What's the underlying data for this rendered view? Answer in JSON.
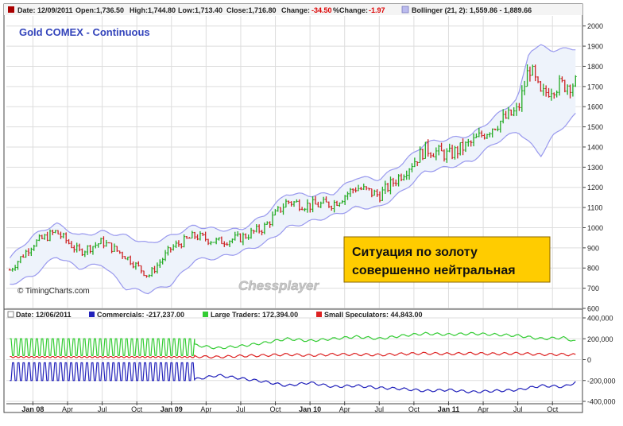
{
  "chart_data": [
    {
      "type": "candlestick",
      "title": "Gold COMEX - Continuous",
      "watermark": "© TimingCharts.com",
      "overlay_watermark": "Chessplayer",
      "annotation": [
        "Ситуация по золоту",
        "совершенно нейтральная"
      ],
      "header": {
        "date": "Date: 12/09/2011",
        "open": "Open:1,736.50",
        "high": "High:1,744.80",
        "low": "Low:1,713.40",
        "close": "Close:1,716.80",
        "change_label": "Change:",
        "change_value": "-34.50",
        "pct_label": "%Change:",
        "pct_value": "-1.97",
        "bollinger": "Bollinger (21, 2): 1,559.86 - 1,889.66"
      },
      "ylim": [
        600,
        2050
      ],
      "y_ticks": [
        600,
        700,
        800,
        900,
        1000,
        1100,
        1200,
        1300,
        1400,
        1500,
        1600,
        1700,
        1800,
        1900,
        2000
      ],
      "y_tick_labels": [
        "600",
        "700",
        "800",
        "900",
        "1000",
        "1100",
        "1200",
        "1300",
        "1400",
        "1500",
        "1600",
        "1700",
        "1800",
        "1900",
        "2000"
      ],
      "grid": true,
      "colors": {
        "up": "#22aa22",
        "down": "#cc2222",
        "band": "#9999ee",
        "band_fill": "#eef3fb"
      },
      "x": [
        "2007-11",
        "2008-01",
        "2008-03",
        "2008-05",
        "2008-07",
        "2008-09",
        "2008-11",
        "2009-01",
        "2009-03",
        "2009-05",
        "2009-07",
        "2009-09",
        "2009-11",
        "2010-01",
        "2010-03",
        "2010-05",
        "2010-07",
        "2010-09",
        "2010-11",
        "2011-01",
        "2011-03",
        "2011-05",
        "2011-07",
        "2011-08",
        "2011-09",
        "2011-10",
        "2011-12"
      ],
      "close": [
        790,
        920,
        980,
        880,
        930,
        860,
        760,
        900,
        960,
        930,
        950,
        1000,
        1130,
        1110,
        1120,
        1200,
        1160,
        1270,
        1390,
        1360,
        1420,
        1510,
        1580,
        1800,
        1650,
        1700,
        1716.8
      ],
      "upper_band": [
        850,
        960,
        1020,
        960,
        980,
        960,
        920,
        960,
        1010,
        990,
        990,
        1060,
        1170,
        1160,
        1170,
        1250,
        1240,
        1320,
        1420,
        1440,
        1460,
        1550,
        1640,
        1880,
        1900,
        1880,
        1889.66
      ],
      "lower_band": [
        720,
        760,
        860,
        800,
        820,
        700,
        680,
        720,
        840,
        850,
        880,
        920,
        1000,
        1030,
        1060,
        1100,
        1100,
        1180,
        1280,
        1300,
        1330,
        1420,
        1480,
        1420,
        1360,
        1450,
        1559.86
      ]
    },
    {
      "type": "line",
      "header": {
        "date": "Date: 12/06/2011",
        "commercials": "Commercials: -217,237.00",
        "large_traders": "Large Traders: 172,394.00",
        "small_speculators": "Small Speculators: 44,843.00"
      },
      "ylim": [
        -400000,
        400000
      ],
      "y_ticks": [
        -400000,
        -200000,
        0,
        200000,
        400000
      ],
      "y_tick_labels": [
        "-400,000",
        "-200,000",
        "0",
        "200,000",
        "400,000"
      ],
      "grid": true,
      "categories": [
        "Jan 08",
        "Apr",
        "Jul",
        "Oct",
        "Jan 09",
        "Apr",
        "Jul",
        "Oct",
        "Jan 10",
        "Apr",
        "Jul",
        "Oct",
        "Jan 11",
        "Apr",
        "Jul",
        "Oct"
      ],
      "series": [
        {
          "name": "Commercials",
          "color": "#2222bb",
          "x": [
            "2009-03",
            "2009-05",
            "2009-07",
            "2009-09",
            "2009-11",
            "2010-01",
            "2010-03",
            "2010-05",
            "2010-07",
            "2010-09",
            "2010-11",
            "2011-01",
            "2011-03",
            "2011-05",
            "2011-07",
            "2011-09",
            "2011-11",
            "2011-12"
          ],
          "values": [
            -190000,
            -150000,
            -180000,
            -210000,
            -250000,
            -220000,
            -260000,
            -250000,
            -270000,
            -280000,
            -300000,
            -290000,
            -310000,
            -300000,
            -290000,
            -250000,
            -260000,
            -217237
          ]
        },
        {
          "name": "Large Traders",
          "color": "#33cc33",
          "x": [
            "2009-03",
            "2009-05",
            "2009-07",
            "2009-09",
            "2009-11",
            "2010-01",
            "2010-03",
            "2010-05",
            "2010-07",
            "2010-09",
            "2010-11",
            "2011-01",
            "2011-03",
            "2011-05",
            "2011-07",
            "2011-09",
            "2011-11",
            "2011-12"
          ],
          "values": [
            140000,
            110000,
            130000,
            160000,
            200000,
            180000,
            200000,
            220000,
            200000,
            230000,
            250000,
            240000,
            250000,
            240000,
            230000,
            200000,
            210000,
            172394
          ]
        },
        {
          "name": "Small Speculators",
          "color": "#dd2222",
          "x": [
            "2009-03",
            "2009-05",
            "2009-07",
            "2009-09",
            "2009-11",
            "2010-01",
            "2010-03",
            "2010-05",
            "2010-07",
            "2010-09",
            "2010-11",
            "2011-01",
            "2011-03",
            "2011-05",
            "2011-07",
            "2011-09",
            "2011-11",
            "2011-12"
          ],
          "values": [
            30000,
            25000,
            35000,
            40000,
            50000,
            40000,
            50000,
            50000,
            45000,
            55000,
            60000,
            55000,
            60000,
            55000,
            60000,
            50000,
            50000,
            44843
          ]
        }
      ]
    }
  ]
}
